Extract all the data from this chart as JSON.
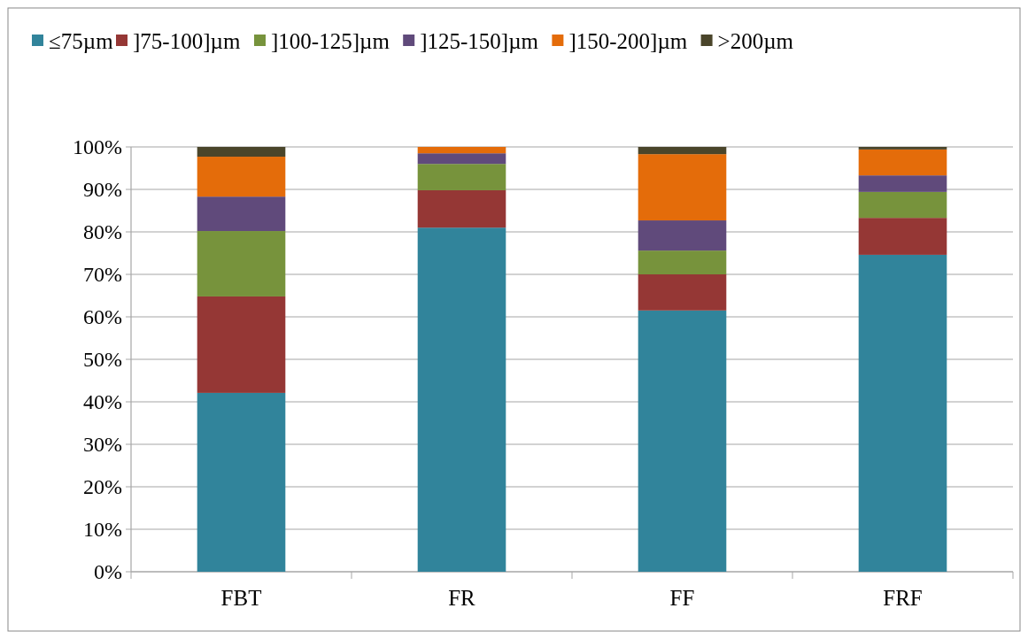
{
  "chart_data": {
    "type": "bar",
    "stacked": true,
    "categories": [
      "FBT",
      "FR",
      "FF",
      "FRF"
    ],
    "series": [
      {
        "name": "≤75µm",
        "color": "#31849b",
        "values": [
          42.1,
          81.0,
          61.5,
          74.6
        ]
      },
      {
        "name": "]75-100]µm",
        "color": "#953735",
        "values": [
          22.7,
          8.8,
          8.5,
          8.7
        ]
      },
      {
        "name": "]100-125]µm",
        "color": "#77933c",
        "values": [
          15.4,
          6.2,
          5.6,
          6.1
        ]
      },
      {
        "name": "]125-150]µm",
        "color": "#604a7b",
        "values": [
          8.1,
          2.5,
          7.1,
          3.9
        ]
      },
      {
        "name": "]150-200]µm",
        "color": "#e46c0a",
        "values": [
          9.4,
          1.5,
          15.6,
          6.1
        ]
      },
      {
        "name": ">200µm",
        "color": "#4a452a",
        "values": [
          2.3,
          0,
          1.7,
          0.6
        ]
      }
    ],
    "ylim": [
      0,
      100
    ],
    "yticks": [
      {
        "value": 0,
        "label": "0%"
      },
      {
        "value": 10,
        "label": "10%"
      },
      {
        "value": 20,
        "label": "20%"
      },
      {
        "value": 30,
        "label": "30%"
      },
      {
        "value": 40,
        "label": "40%"
      },
      {
        "value": 50,
        "label": "50%"
      },
      {
        "value": 60,
        "label": "60%"
      },
      {
        "value": 70,
        "label": "70%"
      },
      {
        "value": 80,
        "label": "80%"
      },
      {
        "value": 90,
        "label": "90%"
      },
      {
        "value": 100,
        "label": "100%"
      }
    ],
    "grid": "y",
    "legend": "top"
  }
}
